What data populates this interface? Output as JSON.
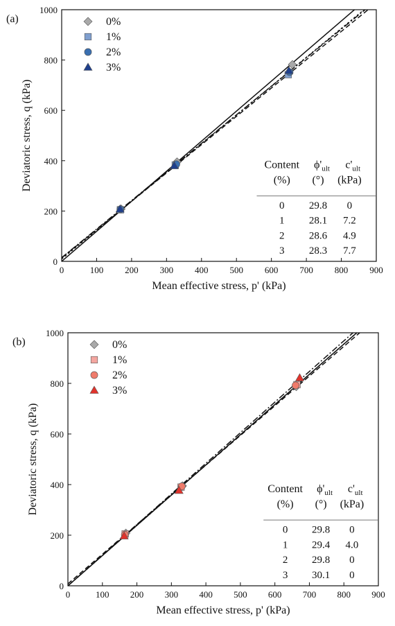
{
  "chart_data": [
    {
      "type": "scatter",
      "panel_label": "(a)",
      "xlabel": "Mean effective stress, p' (kPa)",
      "ylabel": "Deviatoric stress, q (kPa)",
      "xlim": [
        0,
        900
      ],
      "ylim": [
        0,
        1000
      ],
      "xticks": [
        0,
        100,
        200,
        300,
        400,
        500,
        600,
        700,
        800,
        900
      ],
      "yticks": [
        0,
        200,
        400,
        600,
        800,
        1000
      ],
      "legend_position": "top-left",
      "series": [
        {
          "name": "0%",
          "marker": "diamond",
          "color": "#a9a9a9",
          "points": [
            [
              170,
              208
            ],
            [
              330,
              395
            ],
            [
              660,
              782
            ]
          ],
          "fit_line": {
            "slope": 1.194,
            "intercept": 0,
            "dash": ""
          }
        },
        {
          "name": "1%",
          "marker": "square",
          "color": "#7f9fcf",
          "points": [
            [
              168,
              205
            ],
            [
              325,
              383
            ],
            [
              648,
              742
            ]
          ],
          "fit_line": {
            "slope": 1.125,
            "intercept": 13.8,
            "dash": "7,4"
          }
        },
        {
          "name": "2%",
          "marker": "circle",
          "color": "#3a6fb0",
          "points": [
            [
              168,
              207
            ],
            [
              328,
              386
            ],
            [
              652,
              752
            ]
          ],
          "fit_line": {
            "slope": 1.145,
            "intercept": 9.4,
            "dash": "3,3"
          }
        },
        {
          "name": "3%",
          "marker": "triangle",
          "color": "#1f3f8c",
          "points": [
            [
              167,
              208
            ],
            [
              322,
              380
            ],
            [
              650,
              758
            ]
          ],
          "fit_line": {
            "slope": 1.135,
            "intercept": 14.8,
            "dash": "9,3,2,3"
          }
        }
      ],
      "table": {
        "headers": [
          [
            "Content",
            "(%)"
          ],
          [
            "ϕ'ult",
            "(°)"
          ],
          [
            "c'ult",
            "(kPa)"
          ]
        ],
        "rows": [
          [
            "0",
            "29.8",
            "0"
          ],
          [
            "1",
            "28.1",
            "7.2"
          ],
          [
            "2",
            "28.6",
            "4.9"
          ],
          [
            "3",
            "28.3",
            "7.7"
          ]
        ]
      }
    },
    {
      "type": "scatter",
      "panel_label": "(b)",
      "xlabel": "Mean effective stress, p' (kPa)",
      "ylabel": "Deviatoric stress, q (kPa)",
      "xlim": [
        0,
        900
      ],
      "ylim": [
        0,
        1000
      ],
      "xticks": [
        0,
        100,
        200,
        300,
        400,
        500,
        600,
        700,
        800,
        900
      ],
      "yticks": [
        0,
        200,
        400,
        600,
        800,
        1000
      ],
      "legend_position": "top-left",
      "series": [
        {
          "name": "0%",
          "marker": "diamond",
          "color": "#a9a9a9",
          "points": [
            [
              168,
              208
            ],
            [
              332,
              395
            ],
            [
              662,
              787
            ]
          ],
          "fit_line": {
            "slope": 1.194,
            "intercept": 0,
            "dash": ""
          }
        },
        {
          "name": "1%",
          "marker": "square",
          "color": "#f4a6a0",
          "points": [
            [
              166,
              205
            ],
            [
              328,
              390
            ],
            [
              664,
              795
            ]
          ],
          "fit_line": {
            "slope": 1.173,
            "intercept": 7.7,
            "dash": "7,4"
          }
        },
        {
          "name": "2%",
          "marker": "circle",
          "color": "#ef7b6b",
          "points": [
            [
              165,
              202
            ],
            [
              330,
              393
            ],
            [
              660,
              792
            ]
          ],
          "fit_line": {
            "slope": 1.194,
            "intercept": 0,
            "dash": "3,3"
          }
        },
        {
          "name": "3%",
          "marker": "triangle",
          "color": "#e0332c",
          "points": [
            [
              163,
              197
            ],
            [
              322,
              377
            ],
            [
              672,
              822
            ]
          ],
          "fit_line": {
            "slope": 1.21,
            "intercept": 0,
            "dash": "9,3,2,3"
          }
        }
      ],
      "table": {
        "headers": [
          [
            "Content",
            "(%)"
          ],
          [
            "ϕ'ult",
            "(°)"
          ],
          [
            "c'ult",
            "(kPa)"
          ]
        ],
        "rows": [
          [
            "0",
            "29.8",
            "0"
          ],
          [
            "1",
            "29.4",
            "4.0"
          ],
          [
            "2",
            "29.8",
            "0"
          ],
          [
            "3",
            "30.1",
            "0"
          ]
        ]
      }
    }
  ]
}
